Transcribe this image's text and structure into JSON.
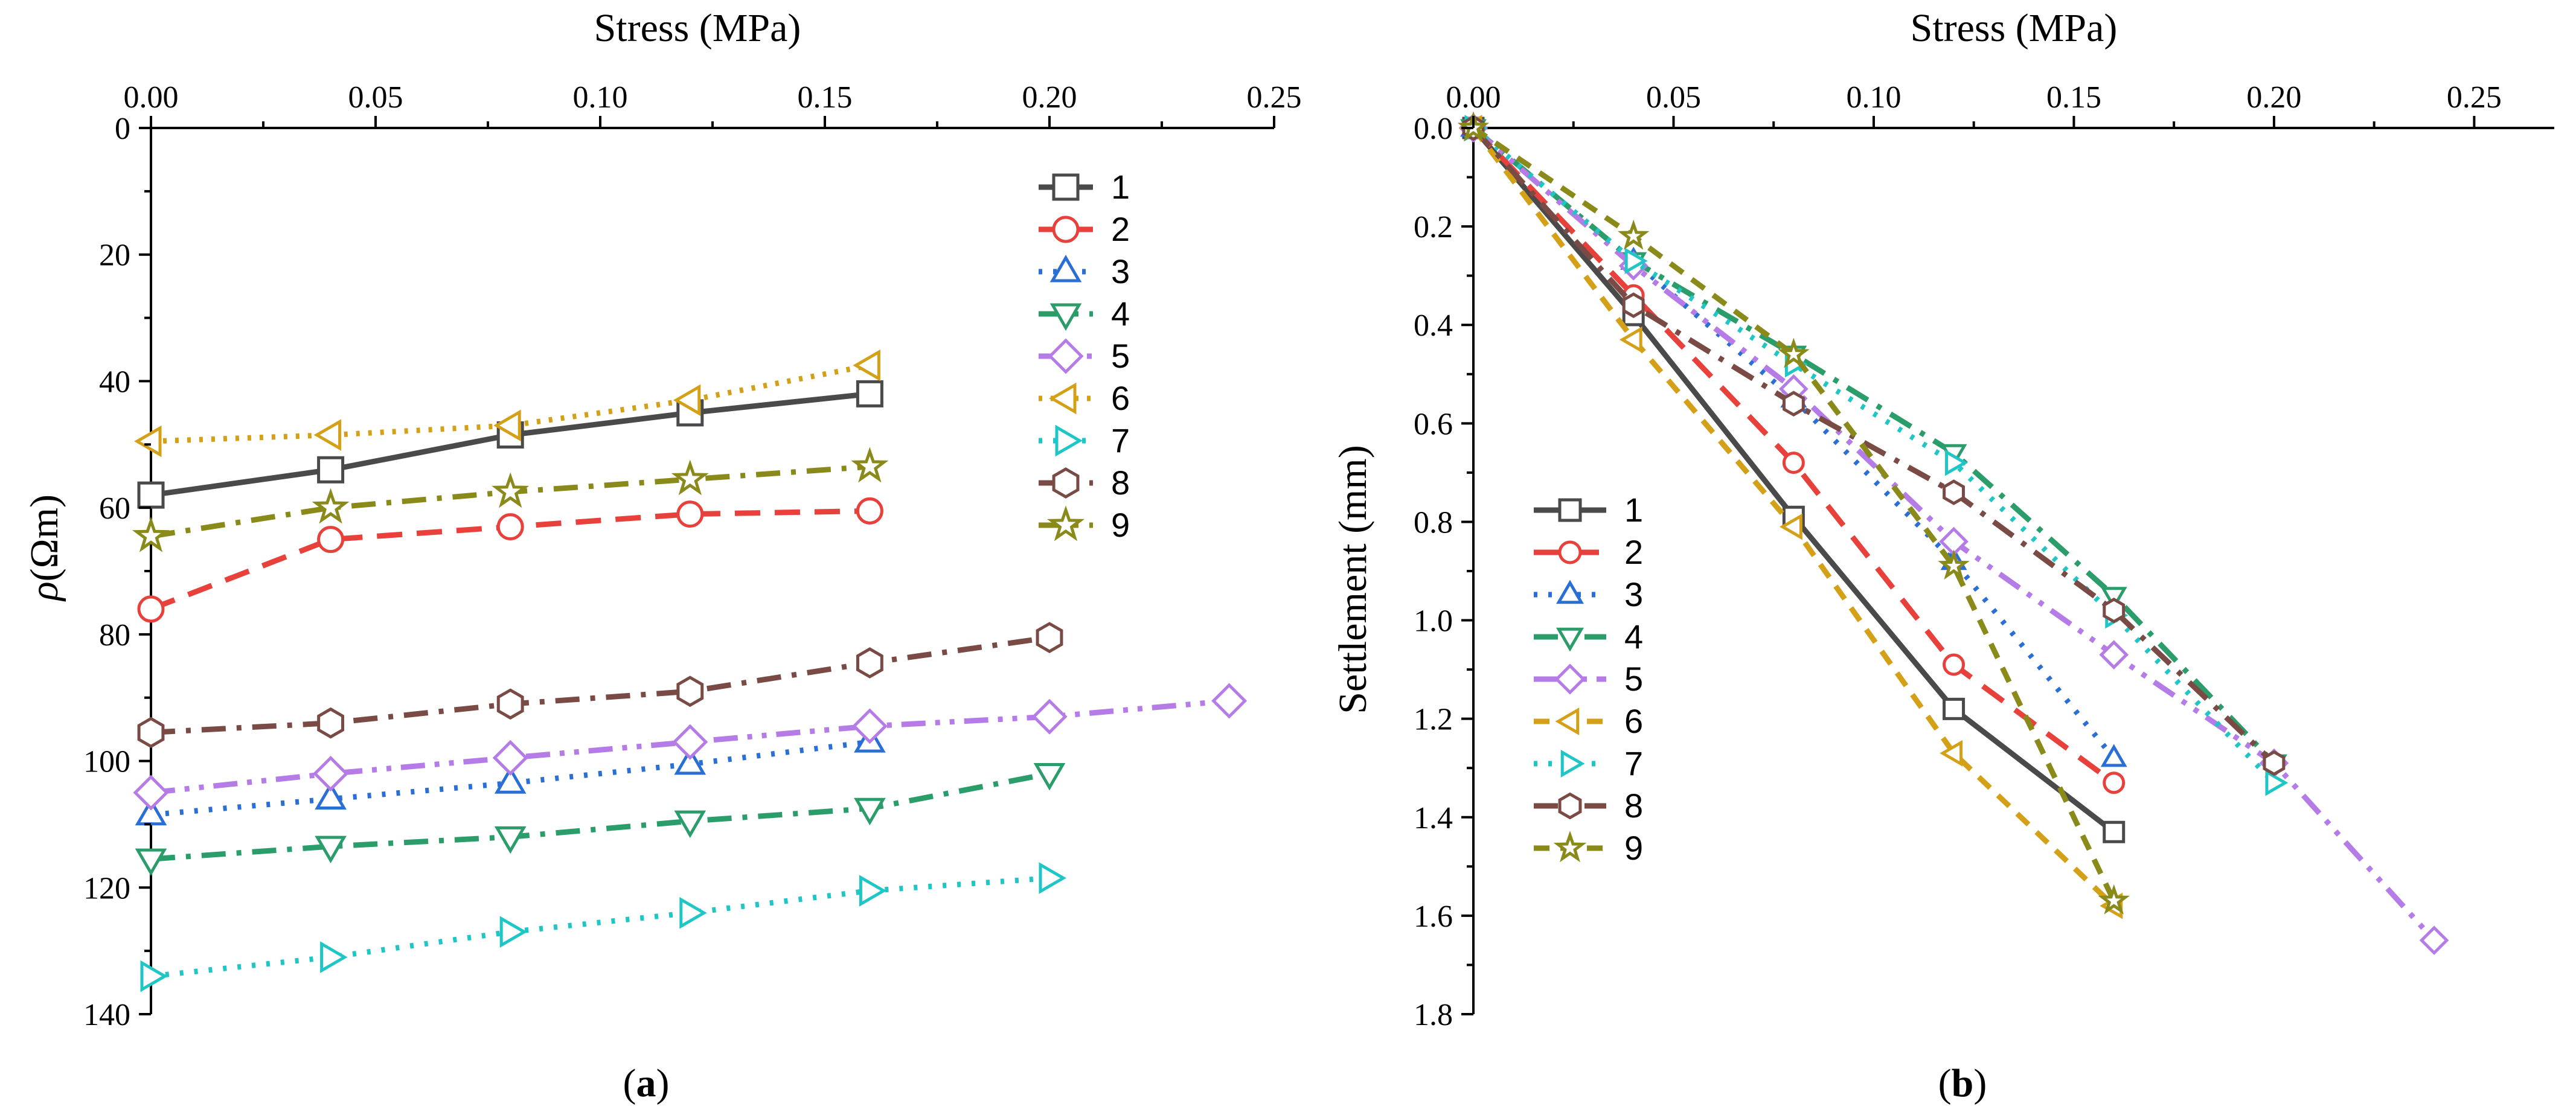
{
  "chart_data": [
    {
      "type": "line",
      "panel_label": "(a)",
      "panel_label_parts": {
        "open": "(",
        "letter": "a",
        "close": ")"
      },
      "title": "",
      "xlabel": "Stress (MPa)",
      "xaxis_position": "top",
      "ylabel": "ρ(Ωm)",
      "ylabel_parts": {
        "symbol": "ρ",
        "units": "(Ωm)"
      },
      "xlim": [
        0,
        0.25
      ],
      "ylim": [
        0,
        140
      ],
      "y_inverted": true,
      "xticks": [
        0.0,
        0.05,
        0.1,
        0.15,
        0.2,
        0.25
      ],
      "xtick_labels": [
        "0.00",
        "0.05",
        "0.10",
        "0.15",
        "0.20",
        "0.25"
      ],
      "yticks": [
        0,
        20,
        40,
        60,
        80,
        100,
        120,
        140
      ],
      "ytick_labels": [
        "0",
        "20",
        "40",
        "60",
        "80",
        "100",
        "120",
        "140"
      ],
      "legend_placement": "top-right",
      "series": [
        {
          "name": "1",
          "color": "#4a4a4a",
          "dash": "solid",
          "marker": "square",
          "x": [
            0,
            0.04,
            0.08,
            0.12,
            0.16
          ],
          "y": [
            58,
            54,
            48.5,
            45,
            42
          ]
        },
        {
          "name": "2",
          "color": "#e8413c",
          "dash": "dash",
          "marker": "circle",
          "x": [
            0,
            0.04,
            0.08,
            0.12,
            0.16
          ],
          "y": [
            76,
            65,
            63,
            61,
            60.5
          ]
        },
        {
          "name": "3",
          "color": "#2a6fd6",
          "dash": "dot",
          "marker": "triangle-up",
          "x": [
            0,
            0.04,
            0.08,
            0.12,
            0.16
          ],
          "y": [
            108.5,
            106,
            103.5,
            100.5,
            97
          ]
        },
        {
          "name": "4",
          "color": "#2a9d6a",
          "dash": "dashdot",
          "marker": "triangle-down",
          "x": [
            0,
            0.04,
            0.08,
            0.12,
            0.16,
            0.2
          ],
          "y": [
            115.5,
            113.5,
            112,
            109.5,
            107.5,
            102
          ]
        },
        {
          "name": "5",
          "color": "#b57be6",
          "dash": "dashdotdot",
          "marker": "diamond",
          "x": [
            0,
            0.04,
            0.08,
            0.12,
            0.16,
            0.2,
            0.24
          ],
          "y": [
            105,
            102,
            99.5,
            97,
            94.5,
            93,
            90.5
          ]
        },
        {
          "name": "6",
          "color": "#d4a017",
          "dash": "shortdot",
          "marker": "triangle-left",
          "x": [
            0,
            0.04,
            0.08,
            0.12,
            0.16
          ],
          "y": [
            49.5,
            48.5,
            47,
            43,
            37.5
          ]
        },
        {
          "name": "7",
          "color": "#1fc6c6",
          "dash": "dot",
          "marker": "triangle-right",
          "x": [
            0,
            0.04,
            0.08,
            0.12,
            0.16,
            0.2
          ],
          "y": [
            134,
            131,
            127,
            124,
            120.5,
            118.5
          ]
        },
        {
          "name": "8",
          "color": "#7a4a45",
          "dash": "dashdot",
          "marker": "hexagon",
          "x": [
            0,
            0.04,
            0.08,
            0.12,
            0.16,
            0.2
          ],
          "y": [
            95.5,
            94,
            91,
            89,
            84.5,
            80.5
          ]
        },
        {
          "name": "9",
          "color": "#8a8a1a",
          "dash": "dashdot",
          "marker": "star",
          "x": [
            0,
            0.04,
            0.08,
            0.12,
            0.16
          ],
          "y": [
            64.5,
            60,
            57.5,
            55.5,
            53.5
          ]
        }
      ]
    },
    {
      "type": "line",
      "panel_label": "(b)",
      "panel_label_parts": {
        "open": "(",
        "letter": "b",
        "close": ")"
      },
      "title": "",
      "xlabel": "Stress (MPa)",
      "xaxis_position": "top",
      "ylabel": "Settlement (mm)",
      "xlim": [
        0,
        0.27
      ],
      "ylim": [
        0,
        1.8
      ],
      "y_inverted": true,
      "xticks": [
        0.0,
        0.05,
        0.1,
        0.15,
        0.2,
        0.25
      ],
      "xtick_labels": [
        "0.00",
        "0.05",
        "0.10",
        "0.15",
        "0.20",
        "0.25"
      ],
      "yticks": [
        0.0,
        0.2,
        0.4,
        0.6,
        0.8,
        1.0,
        1.2,
        1.4,
        1.6,
        1.8
      ],
      "ytick_labels": [
        "0.0",
        "0.2",
        "0.4",
        "0.6",
        "0.8",
        "1.0",
        "1.2",
        "1.4",
        "1.6",
        "1.8"
      ],
      "legend_placement": "bottom-left",
      "series": [
        {
          "name": "1",
          "color": "#4a4a4a",
          "dash": "solid",
          "marker": "square",
          "x": [
            0,
            0.04,
            0.08,
            0.12,
            0.16
          ],
          "y": [
            0,
            0.38,
            0.79,
            1.18,
            1.43
          ]
        },
        {
          "name": "2",
          "color": "#e8413c",
          "dash": "dash",
          "marker": "circle",
          "x": [
            0,
            0.04,
            0.08,
            0.12,
            0.16
          ],
          "y": [
            0,
            0.34,
            0.68,
            1.09,
            1.33
          ]
        },
        {
          "name": "3",
          "color": "#2a6fd6",
          "dash": "dot",
          "marker": "triangle-up",
          "x": [
            0,
            0.04,
            0.08,
            0.12,
            0.16
          ],
          "y": [
            0,
            0.27,
            0.55,
            0.88,
            1.28
          ]
        },
        {
          "name": "4",
          "color": "#2a9d6a",
          "dash": "dashdot",
          "marker": "triangle-down",
          "x": [
            0,
            0.04,
            0.08,
            0.12,
            0.16,
            0.2
          ],
          "y": [
            0,
            0.27,
            0.46,
            0.66,
            0.95,
            1.29
          ]
        },
        {
          "name": "5",
          "color": "#b57be6",
          "dash": "dashdotdot",
          "marker": "diamond",
          "x": [
            0,
            0.04,
            0.08,
            0.12,
            0.16,
            0.2,
            0.24
          ],
          "y": [
            0,
            0.28,
            0.53,
            0.84,
            1.07,
            1.29,
            1.65
          ]
        },
        {
          "name": "6",
          "color": "#d4a017",
          "dash": "shortdash",
          "marker": "triangle-left",
          "x": [
            0,
            0.04,
            0.08,
            0.12,
            0.16
          ],
          "y": [
            0,
            0.43,
            0.81,
            1.27,
            1.58
          ]
        },
        {
          "name": "7",
          "color": "#1fc6c6",
          "dash": "dot",
          "marker": "triangle-right",
          "x": [
            0,
            0.04,
            0.08,
            0.12,
            0.16,
            0.2
          ],
          "y": [
            0,
            0.27,
            0.48,
            0.68,
            0.99,
            1.33
          ]
        },
        {
          "name": "8",
          "color": "#7a4a45",
          "dash": "dashdot",
          "marker": "hexagon",
          "x": [
            0,
            0.04,
            0.08,
            0.12,
            0.16,
            0.2
          ],
          "y": [
            0,
            0.36,
            0.56,
            0.74,
            0.98,
            1.29
          ]
        },
        {
          "name": "9",
          "color": "#8a8a1a",
          "dash": "shortdash",
          "marker": "star",
          "x": [
            0,
            0.04,
            0.08,
            0.12,
            0.16
          ],
          "y": [
            0,
            0.22,
            0.46,
            0.89,
            1.57
          ]
        }
      ]
    }
  ]
}
